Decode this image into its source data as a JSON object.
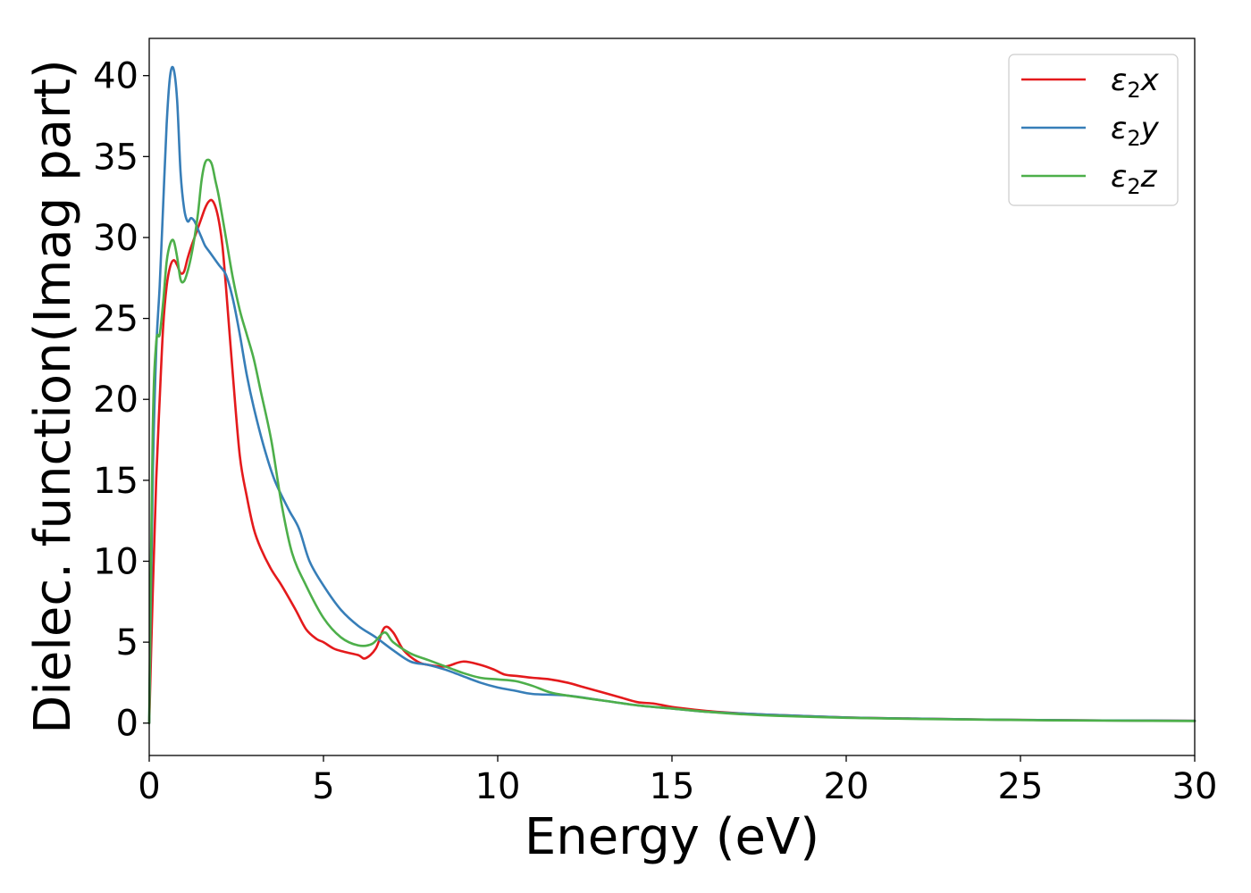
{
  "chart_data": {
    "type": "line",
    "title": "",
    "xlabel": "Energy (eV)",
    "ylabel": "Dielec. function(Imag part)",
    "xlim": [
      0,
      30
    ],
    "ylim": [
      -2,
      42.3
    ],
    "xticks": [
      0,
      5,
      10,
      15,
      20,
      25,
      30
    ],
    "xtick_labels": [
      "0",
      "5",
      "10",
      "15",
      "20",
      "25",
      "30"
    ],
    "yticks": [
      0,
      5,
      10,
      15,
      20,
      25,
      30,
      35,
      40
    ],
    "ytick_labels": [
      "0",
      "5",
      "10",
      "15",
      "20",
      "25",
      "30",
      "35",
      "40"
    ],
    "grid": false,
    "legend_position": "top-right",
    "series": [
      {
        "name": "ε₂x",
        "name_main": "ε",
        "name_sub": "2",
        "name_suffix": "x",
        "color": "#e41a1c",
        "x": [
          0,
          0.1,
          0.2,
          0.3,
          0.4,
          0.5,
          0.6,
          0.7,
          0.8,
          0.9,
          1.0,
          1.1,
          1.2,
          1.3,
          1.4,
          1.5,
          1.6,
          1.7,
          1.8,
          1.9,
          2.0,
          2.1,
          2.2,
          2.4,
          2.6,
          2.8,
          3.0,
          3.2,
          3.5,
          3.8,
          4.2,
          4.5,
          4.8,
          5.0,
          5.3,
          5.6,
          6.0,
          6.2,
          6.5,
          6.75,
          7.0,
          7.3,
          7.7,
          8.0,
          8.5,
          9.0,
          9.5,
          9.9,
          10.2,
          10.6,
          11.0,
          11.5,
          12.0,
          12.5,
          13.0,
          13.5,
          14.0,
          14.5,
          15.0,
          16.0,
          17.0,
          18.0,
          20.0,
          22.0,
          24.0,
          26.0,
          28.0,
          30.0
        ],
        "y": [
          0,
          8,
          15,
          20,
          24.5,
          27,
          28.2,
          28.6,
          28.3,
          27.8,
          27.9,
          28.7,
          29.4,
          30.0,
          30.6,
          31.2,
          31.8,
          32.2,
          32.3,
          31.9,
          31.0,
          29.5,
          27.0,
          21.5,
          16.5,
          14.0,
          12.0,
          10.8,
          9.5,
          8.5,
          7.0,
          5.8,
          5.2,
          5.0,
          4.6,
          4.4,
          4.2,
          4.0,
          4.6,
          5.9,
          5.6,
          4.5,
          3.8,
          3.6,
          3.5,
          3.8,
          3.6,
          3.3,
          3.0,
          2.9,
          2.8,
          2.7,
          2.5,
          2.2,
          1.9,
          1.6,
          1.3,
          1.2,
          1.0,
          0.75,
          0.6,
          0.5,
          0.35,
          0.28,
          0.22,
          0.18,
          0.16,
          0.14
        ]
      },
      {
        "name": "ε₂y",
        "name_main": "ε",
        "name_sub": "2",
        "name_suffix": "y",
        "color": "#377eb8",
        "x": [
          0,
          0.1,
          0.2,
          0.3,
          0.4,
          0.5,
          0.6,
          0.7,
          0.8,
          0.9,
          1.0,
          1.1,
          1.2,
          1.3,
          1.4,
          1.5,
          1.6,
          1.7,
          1.8,
          2.0,
          2.2,
          2.4,
          2.6,
          2.8,
          3.0,
          3.3,
          3.6,
          4.0,
          4.3,
          4.6,
          5.0,
          5.5,
          6.0,
          6.5,
          7.0,
          7.5,
          8.0,
          8.5,
          9.0,
          9.5,
          10.0,
          10.5,
          11.0,
          12.0,
          13.0,
          14.0,
          15.0,
          16.0,
          18.0,
          20.0,
          22.0,
          24.0,
          26.0,
          28.0,
          30.0
        ],
        "y": [
          0,
          15,
          23,
          27,
          32,
          37,
          40.0,
          40.4,
          38.5,
          34.0,
          31.8,
          31.0,
          31.2,
          31.0,
          30.5,
          30.0,
          29.5,
          29.2,
          28.9,
          28.3,
          27.7,
          26.2,
          24.0,
          21.5,
          19.5,
          17.0,
          15.0,
          13.2,
          12.0,
          10.0,
          8.5,
          7.0,
          6.0,
          5.3,
          4.5,
          3.8,
          3.6,
          3.3,
          2.9,
          2.5,
          2.2,
          2.0,
          1.8,
          1.7,
          1.4,
          1.1,
          0.9,
          0.7,
          0.5,
          0.35,
          0.28,
          0.22,
          0.18,
          0.16,
          0.14
        ]
      },
      {
        "name": "ε₂z",
        "name_main": "ε",
        "name_sub": "2",
        "name_suffix": "z",
        "color": "#4daf4a",
        "x": [
          0,
          0.1,
          0.2,
          0.3,
          0.4,
          0.5,
          0.6,
          0.7,
          0.8,
          0.9,
          1.0,
          1.1,
          1.2,
          1.3,
          1.4,
          1.5,
          1.6,
          1.7,
          1.8,
          1.9,
          2.0,
          2.2,
          2.4,
          2.6,
          2.8,
          3.0,
          3.2,
          3.5,
          3.8,
          4.1,
          4.5,
          5.0,
          5.5,
          6.0,
          6.4,
          6.75,
          7.0,
          7.5,
          8.0,
          8.5,
          9.0,
          9.5,
          10.0,
          10.5,
          11.0,
          11.5,
          12.0,
          13.0,
          14.0,
          15.0,
          16.0,
          17.0,
          18.0,
          20.0,
          22.0,
          24.0,
          26.0,
          28.0,
          30.0
        ],
        "y": [
          0,
          18,
          23.5,
          24,
          26,
          28.5,
          29.6,
          29.8,
          28.8,
          27.4,
          27.3,
          27.9,
          28.8,
          30.0,
          31.5,
          33.5,
          34.6,
          34.8,
          34.5,
          33.5,
          32.5,
          30.0,
          27.5,
          25.5,
          24.0,
          22.5,
          20.5,
          17.5,
          13.5,
          10.5,
          8.5,
          6.5,
          5.3,
          4.8,
          4.9,
          5.6,
          5.0,
          4.3,
          3.9,
          3.5,
          3.1,
          2.8,
          2.7,
          2.6,
          2.3,
          1.9,
          1.7,
          1.4,
          1.1,
          0.9,
          0.7,
          0.55,
          0.45,
          0.33,
          0.26,
          0.21,
          0.17,
          0.15,
          0.13
        ]
      }
    ]
  }
}
